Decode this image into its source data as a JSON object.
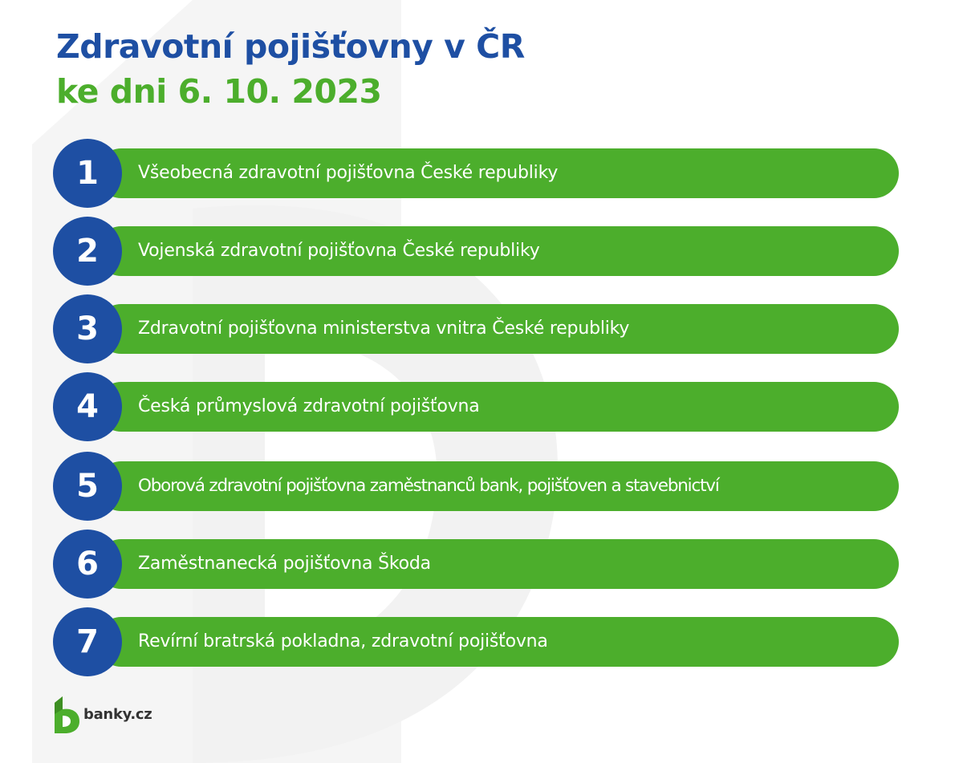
{
  "title": {
    "line1": "Zdravotní pojišťovny v ČR",
    "line2": "ke dni 6. 10. 2023"
  },
  "items": [
    {
      "number": "1",
      "label": "Všeobecná zdravotní pojišťovna České republiky"
    },
    {
      "number": "2",
      "label": "Vojenská zdravotní pojišťovna České republiky"
    },
    {
      "number": "3",
      "label": "Zdravotní pojišťovna ministerstva vnitra České republiky"
    },
    {
      "number": "4",
      "label": "Česká průmyslová zdravotní pojišťovna"
    },
    {
      "number": "5",
      "label": "Oborová zdravotní pojišťovna zaměstnanců bank, pojišťoven a stavebnictví"
    },
    {
      "number": "6",
      "label": "Zaměstnanecká pojišťovna Škoda"
    },
    {
      "number": "7",
      "label": "Revírní bratrská pokladna, zdravotní pojišťovna"
    }
  ],
  "logo": {
    "text": "banky.cz",
    "icon": "banky-logo-icon"
  },
  "colors": {
    "blue": "#1e4fa3",
    "green": "#4cae2c",
    "watermark": "#f3f3f3"
  }
}
